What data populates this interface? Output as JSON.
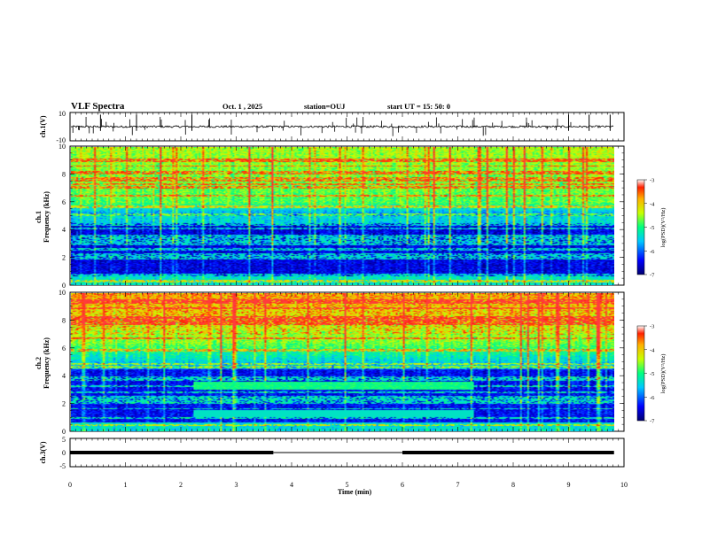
{
  "header": {
    "title": "VLF Spectra",
    "date": "Oct. 1 , 2025",
    "station": "station=OUJ",
    "start": "start UT =  15: 50: 0"
  },
  "chart_data": [
    {
      "type": "line",
      "name": "ch1-voltage",
      "ylabel": "ch.1(V)",
      "ylim": [
        -10,
        10
      ],
      "yticks": [
        "10",
        "-10"
      ],
      "baseline": 0,
      "xlim": [
        0,
        10
      ]
    },
    {
      "type": "heatmap",
      "name": "ch1-spectrogram",
      "ylabel": "ch.1\nFrequency (kHz)",
      "ylim": [
        0,
        10
      ],
      "yticks": [
        "0",
        "2",
        "4",
        "6",
        "8",
        "10"
      ],
      "xlim": [
        0,
        9.82
      ],
      "colorbar": {
        "label": "log(PSD)(V²/Hz)",
        "range": [
          -7,
          -3
        ],
        "ticks": [
          "-3",
          "-4",
          "-5",
          "-6",
          "-7"
        ]
      }
    },
    {
      "type": "heatmap",
      "name": "ch2-spectrogram",
      "ylabel": "ch.2\nFrequency (kHz)",
      "ylim": [
        0,
        10
      ],
      "yticks": [
        "0",
        "2",
        "4",
        "6",
        "8",
        "10"
      ],
      "xlim": [
        0,
        9.82
      ],
      "features": [
        {
          "type": "band",
          "x_start": 2.2,
          "x_end": 7.3,
          "freq_khz": 3.3
        }
      ],
      "colorbar": {
        "label": "log(PSD)(V²/Hz)",
        "range": [
          -7,
          -3
        ],
        "ticks": [
          "-3",
          "-4",
          "-5",
          "-6",
          "-7"
        ]
      }
    },
    {
      "type": "line",
      "name": "ch3-voltage",
      "ylabel": "ch.3(V)",
      "ylim": [
        -5,
        5
      ],
      "yticks": [
        "5",
        "0",
        "-5"
      ],
      "segments": [
        {
          "x_start": 0,
          "x_end": 3.67,
          "value": 0
        },
        {
          "x_start": 3.67,
          "x_end": 6.0,
          "value": 0,
          "style": "thin"
        },
        {
          "x_start": 6.0,
          "x_end": 9.82,
          "value": 0
        }
      ]
    }
  ],
  "xaxis": {
    "label": "Time (min)",
    "range": [
      0,
      10
    ],
    "ticks": [
      "0",
      "1",
      "2",
      "3",
      "4",
      "5",
      "6",
      "7",
      "8",
      "9",
      "10"
    ]
  }
}
